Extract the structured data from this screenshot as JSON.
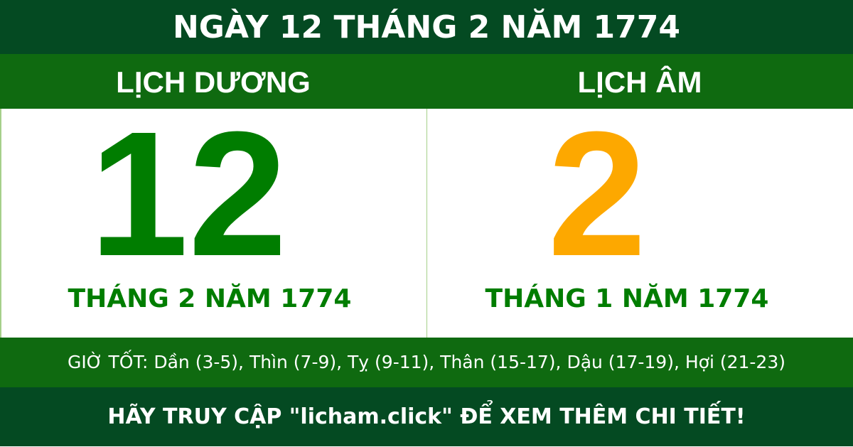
{
  "title": "NGÀY 12 THÁNG 2 NĂM 1774",
  "solar": {
    "heading": "LỊCH DƯƠNG",
    "day": "12",
    "month_year": "THÁNG 2 NĂM 1774"
  },
  "lunar": {
    "heading": "LỊCH ÂM",
    "day": "2",
    "month_year": "THÁNG 1 NĂM 1774"
  },
  "good_hours": "GIỜ TỐT: Dần (3-5), Thìn (7-9), Tỵ (9-11), Thân (15-17), Dậu (17-19), Hợi (21-23)",
  "footer": "HÃY TRUY CẬP \"licham.click\" ĐỂ XEM THÊM CHI TIẾT!",
  "colors": {
    "dark_green": "#044a22",
    "green": "#0f6a10",
    "solar_number": "#007d00",
    "lunar_number": "#fda800"
  }
}
